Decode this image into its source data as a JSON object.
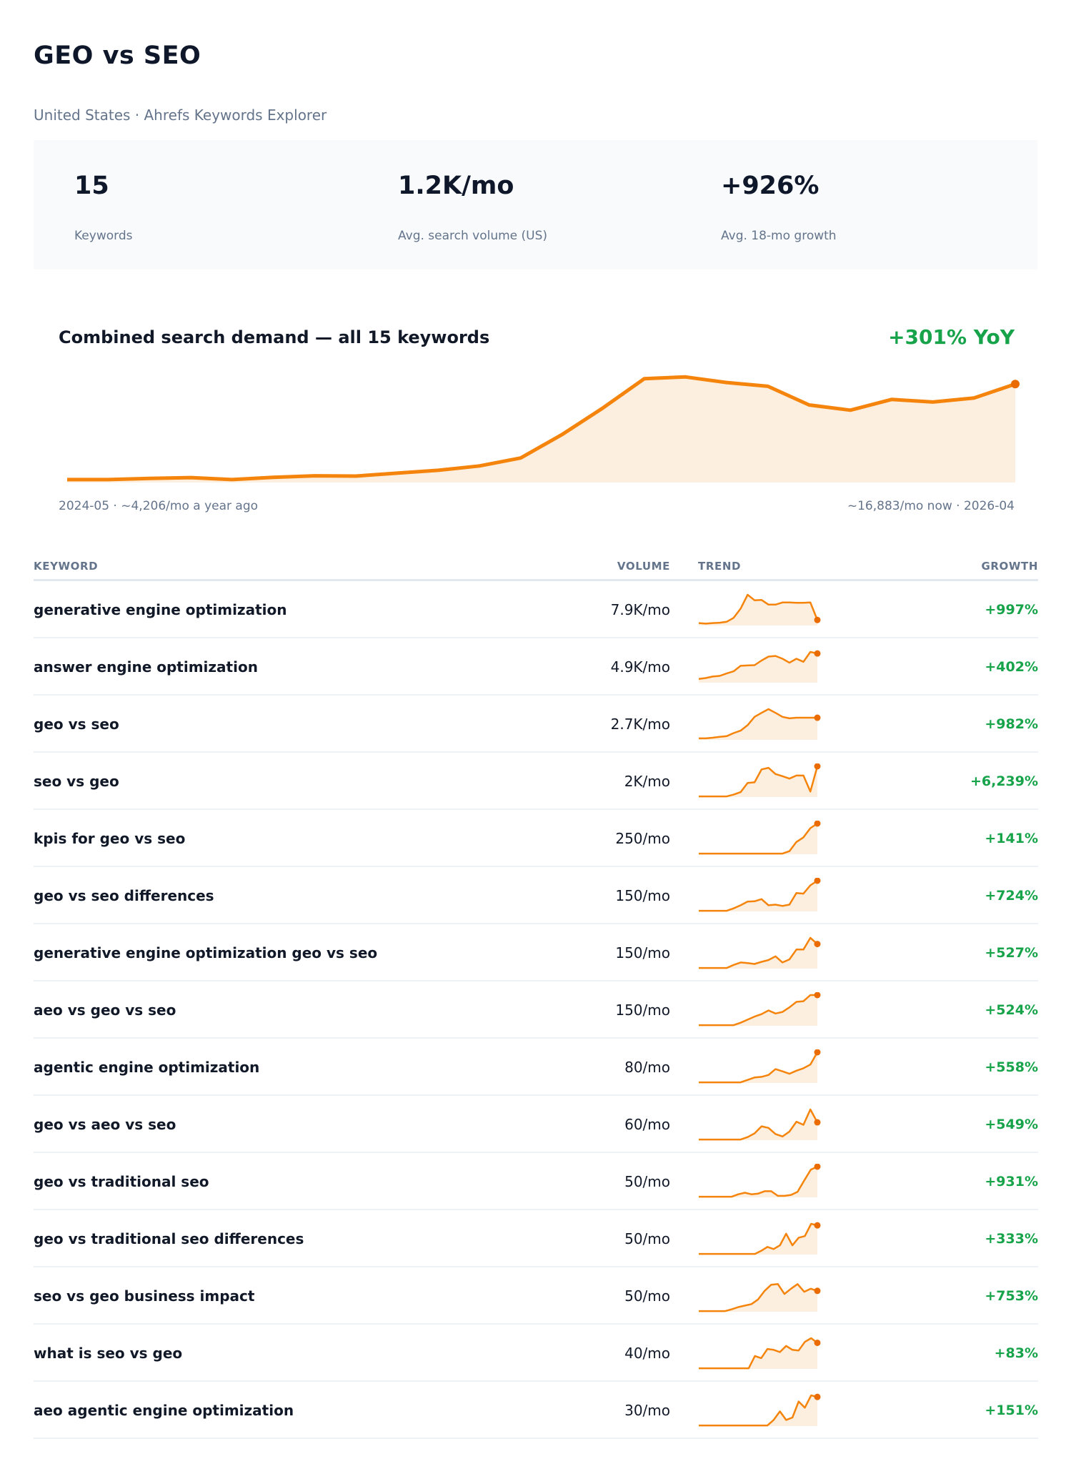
{
  "header": {
    "title": "GEO vs SEO",
    "subtitle": "United States · Ahrefs Keywords Explorer"
  },
  "stats": [
    {
      "value": "15",
      "label": "Keywords"
    },
    {
      "value": "1.2K/mo",
      "label": "Avg. search volume (US)"
    },
    {
      "value": "+926%",
      "label": "Avg. 18-mo growth"
    }
  ],
  "colors": {
    "accent": "#f5840c",
    "fill": "#fdefdf",
    "growth": "#16a34a",
    "text": "#0f172a",
    "muted": "#64748b"
  },
  "chart_data": {
    "type": "area",
    "title": "Combined search demand — all 15 keywords",
    "yoy": "+301% YoY",
    "start_caption": "2024-05 · ~4,206/mo a year ago",
    "end_caption": "~16,883/mo now · 2026-04",
    "x": [
      "2024-05",
      "2024-06",
      "2024-07",
      "2024-08",
      "2024-09",
      "2024-10",
      "2024-11",
      "2024-12",
      "2025-01",
      "2025-02",
      "2025-03",
      "2025-04",
      "2025-05",
      "2025-06",
      "2025-07",
      "2025-08",
      "2025-09",
      "2025-10",
      "2025-11",
      "2025-12",
      "2026-01",
      "2026-02",
      "2026-03",
      "2026-04"
    ],
    "series": [
      {
        "values": [
          500,
          500,
          700,
          850,
          500,
          900,
          1150,
          1100,
          1600,
          2100,
          2850,
          4206,
          8200,
          12800,
          17800,
          18100,
          17150,
          16500,
          13300,
          12400,
          14250,
          13800,
          14500,
          16883
        ]
      }
    ],
    "ylim": [
      0,
      19000
    ],
    "grid": false
  },
  "table": {
    "columns": {
      "keyword": "KEYWORD",
      "volume": "VOLUME",
      "trend": "TREND",
      "growth": "GROWTH"
    },
    "rows": [
      {
        "keyword": "generative engine optimization",
        "volume": "7.9K/mo",
        "growth": "+997%",
        "trend": [
          8,
          6,
          8,
          9,
          12,
          25,
          55,
          100,
          82,
          83,
          68,
          68,
          75,
          75,
          74,
          74,
          75,
          18
        ]
      },
      {
        "keyword": "answer engine optimization",
        "volume": "4.9K/mo",
        "growth": "+402%",
        "trend": [
          12,
          15,
          20,
          22,
          30,
          37,
          55,
          56,
          57,
          72,
          85,
          87,
          78,
          65,
          78,
          68,
          100,
          95
        ]
      },
      {
        "keyword": "geo vs seo",
        "volume": "2.7K/mo",
        "growth": "+982%",
        "trend": [
          5,
          5,
          7,
          10,
          12,
          22,
          30,
          48,
          75,
          88,
          100,
          88,
          75,
          70,
          72,
          72,
          72,
          72
        ]
      },
      {
        "keyword": "seo vs geo",
        "volume": "2K/mo",
        "growth": "+6,239%",
        "trend": [
          2,
          2,
          2,
          2,
          2,
          8,
          16,
          46,
          48,
          90,
          95,
          75,
          68,
          60,
          70,
          70,
          18,
          100
        ]
      },
      {
        "keyword": "kpis for geo vs seo",
        "volume": "250/mo",
        "growth": "+141%",
        "trend": [
          2,
          2,
          2,
          2,
          2,
          2,
          2,
          2,
          2,
          2,
          2,
          2,
          2,
          10,
          40,
          55,
          85,
          100
        ]
      },
      {
        "keyword": "geo vs seo differences",
        "volume": "150/mo",
        "growth": "+724%",
        "trend": [
          2,
          2,
          2,
          2,
          2,
          10,
          20,
          32,
          33,
          40,
          20,
          22,
          18,
          22,
          60,
          58,
          85,
          100
        ]
      },
      {
        "keyword": "generative engine optimization geo vs seo",
        "volume": "150/mo",
        "growth": "+527%",
        "trend": [
          2,
          2,
          2,
          2,
          2,
          12,
          20,
          18,
          15,
          22,
          28,
          40,
          20,
          30,
          62,
          62,
          100,
          80
        ]
      },
      {
        "keyword": "aeo vs geo vs seo",
        "volume": "150/mo",
        "growth": "+524%",
        "trend": [
          2,
          2,
          2,
          2,
          2,
          2,
          10,
          20,
          30,
          38,
          50,
          40,
          45,
          60,
          78,
          80,
          100,
          100
        ]
      },
      {
        "keyword": "agentic engine optimization",
        "volume": "80/mo",
        "growth": "+558%",
        "trend": [
          2,
          2,
          2,
          2,
          2,
          2,
          2,
          10,
          18,
          20,
          26,
          45,
          38,
          30,
          40,
          48,
          60,
          100
        ]
      },
      {
        "keyword": "geo vs aeo vs seo",
        "volume": "60/mo",
        "growth": "+549%",
        "trend": [
          2,
          2,
          2,
          2,
          2,
          2,
          2,
          10,
          22,
          45,
          40,
          20,
          12,
          28,
          60,
          50,
          100,
          58
        ]
      },
      {
        "keyword": "geo vs traditional seo",
        "volume": "50/mo",
        "growth": "+931%",
        "trend": [
          2,
          2,
          2,
          2,
          2,
          2,
          10,
          15,
          10,
          12,
          20,
          20,
          5,
          5,
          8,
          18,
          55,
          90,
          100
        ]
      },
      {
        "keyword": "geo vs traditional seo differences",
        "volume": "50/mo",
        "growth": "+333%",
        "trend": [
          2,
          2,
          2,
          2,
          2,
          2,
          2,
          2,
          2,
          2,
          12,
          25,
          18,
          30,
          68,
          30,
          55,
          60,
          100,
          95
        ]
      },
      {
        "keyword": "seo vs geo business impact",
        "volume": "50/mo",
        "growth": "+753%",
        "trend": [
          2,
          2,
          2,
          2,
          2,
          8,
          15,
          20,
          25,
          40,
          68,
          88,
          90,
          58,
          75,
          90,
          65,
          75,
          68
        ]
      },
      {
        "keyword": "what is seo vs geo",
        "volume": "40/mo",
        "growth": "+83%",
        "trend": [
          2,
          2,
          2,
          2,
          2,
          2,
          2,
          2,
          2,
          42,
          35,
          65,
          62,
          55,
          75,
          62,
          60,
          88,
          100,
          85
        ]
      },
      {
        "keyword": "aeo agentic engine optimization",
        "volume": "30/mo",
        "growth": "+151%",
        "trend": [
          2,
          2,
          2,
          2,
          2,
          2,
          2,
          2,
          2,
          2,
          2,
          2,
          20,
          48,
          20,
          28,
          80,
          60,
          100,
          95
        ]
      }
    ]
  }
}
